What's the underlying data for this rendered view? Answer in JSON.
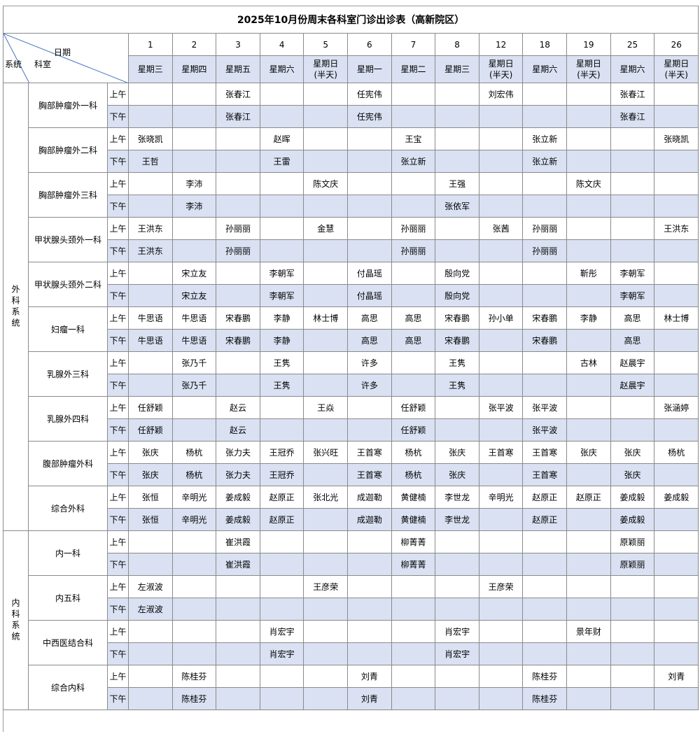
{
  "title": "2025年10月份周末各科室门诊出诊表（高新院区）",
  "header": {
    "date_label": "日期",
    "dept_label": "科室",
    "system_label": "系统"
  },
  "days": [
    "1",
    "2",
    "3",
    "4",
    "5",
    "6",
    "7",
    "8",
    "12",
    "18",
    "19",
    "25",
    "26"
  ],
  "weekdays": [
    "星期三",
    "星期四",
    "星期五",
    "星期六",
    "星期日\n(半天)",
    "星期一",
    "星期二",
    "星期三",
    "星期日\n(半天)",
    "星期六",
    "星期日\n(半天)",
    "星期六",
    "星期日\n(半天)"
  ],
  "periods": {
    "am": "上午",
    "pm": "下午"
  },
  "colors": {
    "header_fill": "#d9e1f2",
    "pm_fill": "#d9e1f2",
    "grid": "#8a8a8a"
  },
  "systems": [
    {
      "name": "外科系统",
      "departments": [
        {
          "name": "胸部肿瘤外一科",
          "am": [
            "",
            "",
            "张春江",
            "",
            "",
            "任宪伟",
            "",
            "",
            "刘宏伟",
            "",
            "",
            "张春江",
            ""
          ],
          "pm": [
            "",
            "",
            "张春江",
            "",
            "",
            "任宪伟",
            "",
            "",
            "",
            "",
            "",
            "张春江",
            ""
          ]
        },
        {
          "name": "胸部肿瘤外二科",
          "am": [
            "张晓凯",
            "",
            "",
            "赵晖",
            "",
            "",
            "王宝",
            "",
            "",
            "张立新",
            "",
            "",
            "张晓凯"
          ],
          "pm": [
            "王哲",
            "",
            "",
            "王雷",
            "",
            "",
            "张立新",
            "",
            "",
            "张立新",
            "",
            "",
            ""
          ]
        },
        {
          "name": "胸部肿瘤外三科",
          "am": [
            "",
            "李沛",
            "",
            "",
            "陈文庆",
            "",
            "",
            "王强",
            "",
            "",
            "陈文庆",
            "",
            ""
          ],
          "pm": [
            "",
            "李沛",
            "",
            "",
            "",
            "",
            "",
            "张依军",
            "",
            "",
            "",
            "",
            ""
          ]
        },
        {
          "name": "甲状腺头颈外一科",
          "am": [
            "王洪东",
            "",
            "孙丽丽",
            "",
            "金慧",
            "",
            "孙丽丽",
            "",
            "张茜",
            "孙丽丽",
            "",
            "",
            "王洪东"
          ],
          "pm": [
            "王洪东",
            "",
            "孙丽丽",
            "",
            "",
            "",
            "孙丽丽",
            "",
            "",
            "孙丽丽",
            "",
            "",
            ""
          ]
        },
        {
          "name": "甲状腺头颈外二科",
          "am": [
            "",
            "宋立友",
            "",
            "李朝军",
            "",
            "付晶瑶",
            "",
            "殷向党",
            "",
            "",
            "靳彤",
            "李朝军",
            ""
          ],
          "pm": [
            "",
            "宋立友",
            "",
            "李朝军",
            "",
            "付晶瑶",
            "",
            "殷向党",
            "",
            "",
            "",
            "李朝军",
            ""
          ]
        },
        {
          "name": "妇瘤一科",
          "am": [
            "牛思语",
            "牛思语",
            "宋春鹏",
            "李静",
            "林士博",
            "高思",
            "高思",
            "宋春鹏",
            "孙小单",
            "宋春鹏",
            "李静",
            "高思",
            "林士博"
          ],
          "pm": [
            "牛思语",
            "牛思语",
            "宋春鹏",
            "李静",
            "",
            "高思",
            "高思",
            "宋春鹏",
            "",
            "宋春鹏",
            "",
            "高思",
            ""
          ]
        },
        {
          "name": "乳腺外三科",
          "am": [
            "",
            "张乃千",
            "",
            "王隽",
            "",
            "许多",
            "",
            "王隽",
            "",
            "",
            "古林",
            "赵晨宇",
            ""
          ],
          "pm": [
            "",
            "张乃千",
            "",
            "王隽",
            "",
            "许多",
            "",
            "王隽",
            "",
            "",
            "",
            "赵晨宇",
            ""
          ]
        },
        {
          "name": "乳腺外四科",
          "am": [
            "任舒颖",
            "",
            "赵云",
            "",
            "王焱",
            "",
            "任舒颖",
            "",
            "张平波",
            "张平波",
            "",
            "",
            "张涵婷"
          ],
          "pm": [
            "任舒颖",
            "",
            "赵云",
            "",
            "",
            "",
            "任舒颖",
            "",
            "",
            "张平波",
            "",
            "",
            ""
          ]
        },
        {
          "name": "腹部肿瘤外科",
          "am": [
            "张庆",
            "杨杭",
            "张力夫",
            "王冠乔",
            "张兴旺",
            "王首寒",
            "杨杭",
            "张庆",
            "王首寒",
            "王首寒",
            "张庆",
            "张庆",
            "杨杭"
          ],
          "pm": [
            "张庆",
            "杨杭",
            "张力夫",
            "王冠乔",
            "",
            "王首寒",
            "杨杭",
            "张庆",
            "",
            "王首寒",
            "",
            "张庆",
            ""
          ]
        },
        {
          "name": "综合外科",
          "am": [
            "张恒",
            "辛明光",
            "姜成毅",
            "赵原正",
            "张北光",
            "成迦勒",
            "黄健楠",
            "李世龙",
            "辛明光",
            "赵原正",
            "赵原正",
            "姜成毅",
            "姜成毅"
          ],
          "pm": [
            "张恒",
            "辛明光",
            "姜成毅",
            "赵原正",
            "",
            "成迦勒",
            "黄健楠",
            "李世龙",
            "",
            "赵原正",
            "",
            "姜成毅",
            ""
          ]
        }
      ]
    },
    {
      "name": "内科系统",
      "departments": [
        {
          "name": "内一科",
          "am": [
            "",
            "",
            "崔洪霞",
            "",
            "",
            "",
            "柳菁菁",
            "",
            "",
            "",
            "",
            "原颖丽",
            ""
          ],
          "pm": [
            "",
            "",
            "崔洪霞",
            "",
            "",
            "",
            "柳菁菁",
            "",
            "",
            "",
            "",
            "原颖丽",
            ""
          ]
        },
        {
          "name": "内五科",
          "am": [
            "左淑波",
            "",
            "",
            "",
            "王彦荣",
            "",
            "",
            "",
            "王彦荣",
            "",
            "",
            "",
            ""
          ],
          "pm": [
            "左淑波",
            "",
            "",
            "",
            "",
            "",
            "",
            "",
            "",
            "",
            "",
            "",
            ""
          ]
        },
        {
          "name": "中西医结合科",
          "am": [
            "",
            "",
            "",
            "肖宏宇",
            "",
            "",
            "",
            "肖宏宇",
            "",
            "",
            "景年财",
            "",
            ""
          ],
          "pm": [
            "",
            "",
            "",
            "肖宏宇",
            "",
            "",
            "",
            "肖宏宇",
            "",
            "",
            "",
            "",
            ""
          ]
        },
        {
          "name": "综合内科",
          "am": [
            "",
            "陈桂芬",
            "",
            "",
            "",
            "刘青",
            "",
            "",
            "",
            "陈桂芬",
            "",
            "",
            "刘青"
          ],
          "pm": [
            "",
            "陈桂芬",
            "",
            "",
            "",
            "刘青",
            "",
            "",
            "",
            "陈桂芬",
            "",
            "",
            ""
          ]
        }
      ]
    }
  ]
}
